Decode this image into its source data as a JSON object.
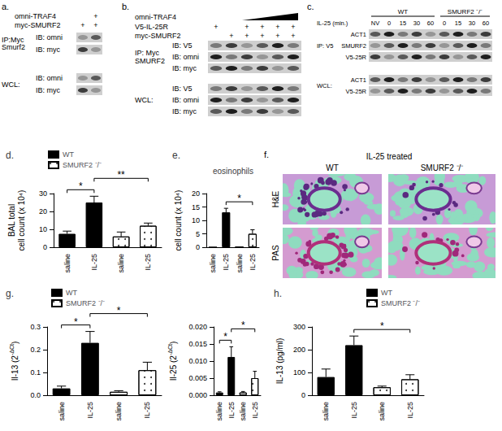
{
  "blots": [
    {
      "panel": "a.",
      "conditions": [
        {
          "label": "omni-TRAF4",
          "lanes": [
            null,
            "+"
          ]
        },
        {
          "label": "myc-SMURF2",
          "lanes": [
            "+",
            "+"
          ]
        }
      ],
      "groups": [
        {
          "label": "IP:Myc\nSmurf2",
          "rows": [
            "IB: omni",
            "IB: myc"
          ]
        },
        {
          "label": "WCL:",
          "rows": [
            "IB: omni",
            "IB: myc"
          ]
        }
      ]
    },
    {
      "panel": "b.",
      "conditions": [
        {
          "label": "omni-TRAF4",
          "wedge": [
            2,
            5
          ]
        },
        {
          "label": "V5-IL-25R",
          "lanes": [
            "+",
            null,
            "+",
            "+",
            "+",
            "+"
          ]
        },
        {
          "label": "myc-SMURF2",
          "lanes": [
            null,
            "+",
            "+",
            "+",
            "+",
            "+"
          ]
        }
      ],
      "groups": [
        {
          "label": "IP: Myc\nSMURF2",
          "rows": [
            "IB: V5",
            "IB: omni",
            "IB: myc"
          ]
        },
        {
          "label": "WCL:",
          "rows": [
            "IB: V5",
            "IB: omni",
            "IB: myc"
          ]
        }
      ]
    },
    {
      "panel": "c.",
      "headers": [
        {
          "label": "WT",
          "lanes": [
            0,
            4
          ]
        },
        {
          "label": "SMURF2 ⁻/⁻",
          "lanes": [
            5,
            8
          ]
        }
      ],
      "conditions": [
        {
          "label": "IL-25 (min.)",
          "lanes": [
            "NV",
            "0",
            "15",
            "30",
            "60",
            "0",
            "15",
            "30",
            "60"
          ]
        }
      ],
      "groups": [
        {
          "label": "IP: V5",
          "rows": [
            "ACT1",
            "SMURF2",
            "V5-25R"
          ]
        },
        {
          "label": "WCL:",
          "rows": [
            "ACT1",
            "V5-25R"
          ]
        }
      ]
    }
  ],
  "histology": {
    "panel": "f.",
    "title": "IL-25 treated",
    "columns": [
      "WT",
      "SMURF2 ⁻/⁻"
    ],
    "rows": [
      "H&E",
      "PAS"
    ]
  },
  "chart_data": [
    {
      "panel": "d.",
      "type": "bar",
      "ylabel": "BAL total\ncell count (x 10⁴)",
      "categories": [
        "saline",
        "IL-25",
        "saline",
        "IL-25"
      ],
      "series": [
        {
          "name": "WT",
          "color": "#000000",
          "values": [
            7.5,
            25,
            null,
            null
          ],
          "errors": [
            1.5,
            3.5,
            null,
            null
          ]
        },
        {
          "name": "SMURF2 ⁻/⁻",
          "color": "#ffffff",
          "marker": "dotted",
          "values": [
            null,
            null,
            6,
            12
          ],
          "errors": [
            null,
            null,
            2.5,
            1.5
          ]
        }
      ],
      "ylim": [
        0,
        30
      ],
      "yticks": [
        0,
        10,
        20,
        30
      ],
      "grid": false,
      "legend": "upper left",
      "significance": [
        {
          "between": [
            0,
            1
          ],
          "label": "*"
        },
        {
          "between": [
            1,
            3
          ],
          "label": "**"
        }
      ]
    },
    {
      "panel": "e.",
      "type": "bar",
      "title": "eosinophils",
      "ylabel": "cell count (x 10⁴)",
      "categories": [
        "saline",
        "IL-25",
        "saline",
        "IL-25"
      ],
      "series": [
        {
          "name": "WT",
          "color": "#000000",
          "values": [
            0,
            13,
            null,
            null
          ],
          "errors": [
            null,
            1.5,
            null,
            null
          ]
        },
        {
          "name": "SMURF2 ⁻/⁻",
          "color": "#ffffff",
          "marker": "dotted",
          "values": [
            null,
            null,
            0,
            5
          ],
          "errors": [
            null,
            null,
            null,
            1.5
          ]
        }
      ],
      "ylim": [
        0,
        20
      ],
      "yticks": [
        0,
        5,
        10,
        15,
        20
      ],
      "grid": false,
      "significance": [
        {
          "between": [
            1,
            3
          ],
          "label": "*"
        }
      ]
    },
    {
      "panel": "g.",
      "type": "bar",
      "ylabel": {
        "text": "Il-13 (2",
        "superscript": "-ΔCt",
        "tail": ")"
      },
      "categories": [
        "saline",
        "IL-25",
        "saline",
        "IL-25"
      ],
      "series": [
        {
          "name": "WT",
          "color": "#000000",
          "values": [
            0.03,
            0.23,
            null,
            null
          ],
          "errors": [
            0.01,
            0.05,
            null,
            null
          ]
        },
        {
          "name": "SMURF2 ⁻/⁻",
          "color": "#ffffff",
          "marker": "dotted",
          "values": [
            null,
            null,
            0.015,
            0.11
          ],
          "errors": [
            null,
            null,
            0.005,
            0.035
          ]
        }
      ],
      "ylim": [
        0,
        0.3
      ],
      "yticks": [
        {
          "value": 0,
          "label": "0.0"
        },
        0.1,
        0.2,
        0.3
      ],
      "grid": false,
      "legend": "upper left",
      "significance": [
        {
          "between": [
            0,
            1
          ],
          "label": "*"
        },
        {
          "between": [
            1,
            3
          ],
          "label": "*"
        }
      ]
    },
    {
      "type": "bar",
      "ylabel": {
        "text": "Il-25 (2",
        "superscript": "-ΔCt",
        "tail": ")"
      },
      "categories": [
        "saline",
        "IL-25",
        "saline",
        "IL-25"
      ],
      "series": [
        {
          "name": "WT",
          "color": "#000000",
          "values": [
            0.0008,
            0.0112,
            null,
            null
          ],
          "errors": [
            0.0002,
            0.003,
            null,
            null
          ]
        },
        {
          "name": "SMURF2 ⁻/⁻",
          "color": "#ffffff",
          "marker": "dotted",
          "values": [
            null,
            null,
            0.0008,
            0.005
          ],
          "errors": [
            null,
            null,
            0.0003,
            0.002
          ]
        }
      ],
      "ylim": [
        0,
        0.02
      ],
      "yticks": [
        {
          "value": 0,
          "label": "0.000"
        },
        0.005,
        {
          "value": 0.01,
          "label": "0.010"
        },
        0.015,
        {
          "value": 0.02,
          "label": "0.020"
        }
      ],
      "grid": false,
      "significance": [
        {
          "between": [
            0,
            1
          ],
          "label": "*"
        },
        {
          "between": [
            1,
            3
          ],
          "label": "*"
        }
      ]
    },
    {
      "panel": "h.",
      "type": "bar",
      "ylabel": "IL-13 (pg/ml)",
      "categories": [
        "saline",
        "IL-25",
        "saline",
        "IL-25"
      ],
      "series": [
        {
          "name": "WT",
          "color": "#000000",
          "values": [
            80,
            220,
            null,
            null
          ],
          "errors": [
            35,
            40,
            null,
            null
          ]
        },
        {
          "name": "SMURF2 ⁻/⁻",
          "color": "#ffffff",
          "marker": "dotted",
          "values": [
            null,
            null,
            35,
            70
          ],
          "errors": [
            null,
            null,
            5,
            20
          ]
        }
      ],
      "ylim": [
        0,
        300
      ],
      "yticks": [
        0,
        100,
        200,
        300
      ],
      "grid": false,
      "legend": "upper right",
      "significance": [
        {
          "between": [
            1,
            3
          ],
          "label": "*"
        }
      ]
    }
  ]
}
